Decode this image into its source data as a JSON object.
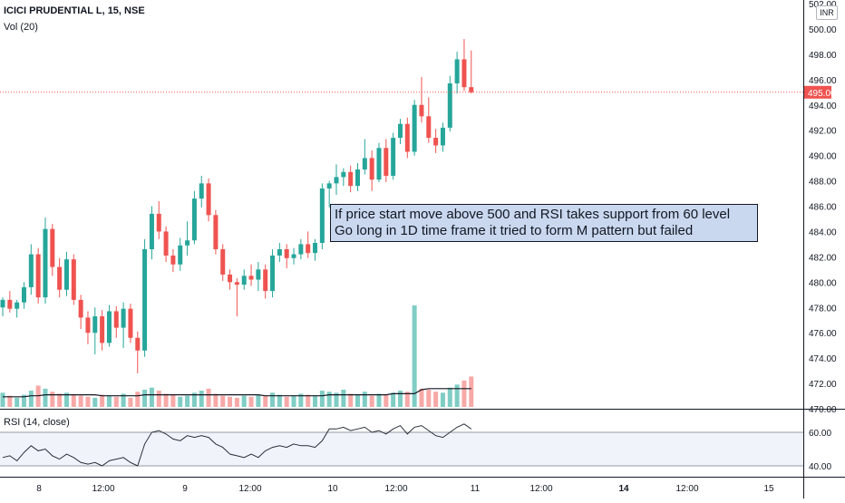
{
  "header": {
    "symbol": "ICICI PRUDENTIAL L, 15, NSE",
    "volume_label": "Vol (20)",
    "rsi_label": "RSI (14, close)",
    "currency": "INR"
  },
  "annotation": {
    "line1": "If price start move above 500 and RSI takes support from 60 level",
    "line2": "Go long in 1D time frame it tried to form M pattern but failed"
  },
  "price_axis": {
    "ticks": [
      "502.00",
      "500.00",
      "498.00",
      "496.00",
      "494.00",
      "492.00",
      "490.00",
      "488.00",
      "486.00",
      "484.00",
      "482.00",
      "480.00",
      "478.00",
      "476.00",
      "474.00",
      "472.00",
      "470.00"
    ],
    "last_price_label": "495.00"
  },
  "rsi_axis": {
    "ticks": [
      "60.00",
      "40.00"
    ]
  },
  "time_axis": {
    "labels": [
      "8",
      "12:00",
      "9",
      "12:00",
      "10",
      "12:00",
      "11",
      "12:00",
      "14",
      "12:00",
      "15"
    ]
  },
  "colors": {
    "up": "#26a69a",
    "down": "#ef5350",
    "volume_up": "#7fcdc4",
    "volume_down": "#f7a9a7",
    "rsi_band": "#f0f3fa",
    "last_price": "#ef5350"
  },
  "chart_data": [
    {
      "type": "candlestick",
      "title": "ICICI PRUDENTIAL L, 15, NSE",
      "ylim": [
        470,
        502
      ],
      "last_price": 495.0,
      "candles": [
        [
          478.0,
          478.8,
          477.3,
          478.6
        ],
        [
          478.6,
          479.3,
          477.6,
          477.9
        ],
        [
          477.9,
          478.6,
          477.2,
          478.4
        ],
        [
          478.4,
          480.0,
          477.9,
          479.6
        ],
        [
          479.6,
          483.0,
          479.0,
          482.2
        ],
        [
          482.2,
          482.7,
          478.3,
          478.8
        ],
        [
          478.8,
          485.1,
          478.3,
          484.2
        ],
        [
          484.2,
          484.6,
          480.5,
          481.2
        ],
        [
          481.2,
          481.9,
          478.8,
          479.4
        ],
        [
          479.4,
          482.4,
          478.9,
          481.8
        ],
        [
          481.8,
          482.2,
          478.2,
          478.6
        ],
        [
          478.6,
          479.0,
          476.3,
          477.2
        ],
        [
          477.2,
          477.7,
          475.1,
          476.0
        ],
        [
          476.0,
          478.0,
          474.3,
          477.3
        ],
        [
          477.3,
          477.8,
          474.6,
          475.2
        ],
        [
          475.2,
          478.2,
          474.9,
          477.7
        ],
        [
          477.7,
          478.1,
          475.6,
          476.4
        ],
        [
          476.4,
          478.4,
          474.8,
          477.9
        ],
        [
          477.9,
          478.3,
          475.2,
          475.6
        ],
        [
          475.6,
          476.1,
          472.8,
          474.6
        ],
        [
          474.6,
          483.4,
          474.1,
          482.6
        ],
        [
          482.6,
          486.0,
          481.8,
          485.4
        ],
        [
          485.4,
          486.4,
          483.4,
          484.0
        ],
        [
          484.0,
          484.4,
          481.6,
          482.1
        ],
        [
          482.1,
          482.6,
          480.8,
          481.4
        ],
        [
          481.4,
          483.5,
          480.9,
          482.9
        ],
        [
          482.9,
          484.8,
          482.1,
          483.3
        ],
        [
          483.3,
          487.2,
          483.0,
          486.6
        ],
        [
          486.6,
          488.4,
          485.9,
          487.8
        ],
        [
          487.8,
          488.2,
          484.8,
          485.3
        ],
        [
          485.3,
          485.7,
          482.2,
          482.6
        ],
        [
          482.6,
          483.0,
          480.1,
          480.6
        ],
        [
          480.6,
          481.0,
          479.4,
          480.0
        ],
        [
          480.0,
          480.3,
          477.3,
          479.8
        ],
        [
          479.8,
          481.0,
          479.4,
          480.5
        ],
        [
          480.5,
          481.4,
          479.7,
          480.2
        ],
        [
          480.2,
          481.6,
          479.3,
          481.0
        ],
        [
          481.0,
          481.4,
          478.7,
          479.3
        ],
        [
          479.3,
          482.6,
          478.8,
          482.1
        ],
        [
          482.1,
          483.1,
          481.6,
          482.6
        ],
        [
          482.6,
          483.0,
          481.1,
          481.9
        ],
        [
          481.9,
          482.7,
          481.4,
          482.2
        ],
        [
          482.2,
          483.4,
          481.8,
          483.0
        ],
        [
          483.0,
          484.0,
          481.9,
          482.3
        ],
        [
          482.3,
          483.4,
          481.7,
          483.1
        ],
        [
          483.1,
          487.8,
          482.6,
          487.4
        ],
        [
          487.4,
          488.0,
          485.9,
          487.8
        ],
        [
          487.8,
          489.3,
          486.9,
          488.3
        ],
        [
          488.3,
          489.0,
          487.6,
          488.7
        ],
        [
          488.7,
          489.2,
          487.1,
          487.6
        ],
        [
          487.6,
          489.4,
          487.2,
          488.9
        ],
        [
          488.9,
          491.3,
          488.5,
          489.8
        ],
        [
          489.8,
          490.4,
          487.2,
          488.1
        ],
        [
          488.1,
          491.0,
          487.9,
          490.6
        ],
        [
          490.6,
          491.3,
          487.9,
          488.4
        ],
        [
          488.4,
          491.8,
          488.1,
          491.4
        ],
        [
          491.4,
          492.9,
          490.9,
          492.5
        ],
        [
          492.5,
          493.0,
          489.8,
          490.3
        ],
        [
          490.3,
          494.4,
          490.0,
          494.0
        ],
        [
          494.0,
          496.2,
          492.6,
          493.1
        ],
        [
          493.1,
          494.6,
          491.0,
          491.4
        ],
        [
          491.4,
          492.1,
          490.2,
          490.8
        ],
        [
          490.8,
          492.6,
          490.3,
          492.2
        ],
        [
          492.2,
          496.3,
          491.9,
          495.7
        ],
        [
          495.7,
          498.2,
          494.9,
          497.6
        ],
        [
          497.6,
          499.2,
          495.1,
          495.4
        ],
        [
          495.4,
          498.3,
          494.9,
          495.0
        ]
      ]
    },
    {
      "type": "bar",
      "title": "Vol (20)",
      "values": [
        14,
        11,
        9,
        12,
        16,
        21,
        18,
        15,
        13,
        14,
        12,
        11,
        10,
        9,
        12,
        11,
        10,
        13,
        9,
        15,
        17,
        19,
        16,
        13,
        12,
        10,
        11,
        14,
        16,
        18,
        13,
        11,
        10,
        9,
        11,
        10,
        12,
        11,
        14,
        12,
        10,
        11,
        13,
        12,
        11,
        16,
        15,
        14,
        17,
        13,
        12,
        15,
        11,
        13,
        12,
        14,
        16,
        15,
        100,
        18,
        17,
        15,
        14,
        19,
        22,
        26,
        30
      ],
      "ma": [
        10,
        10,
        10,
        10,
        11,
        11,
        12,
        12,
        12,
        12,
        12,
        12,
        12,
        12,
        11,
        11,
        11,
        11,
        11,
        11,
        12,
        12,
        12,
        12,
        12,
        12,
        12,
        12,
        12,
        12,
        12,
        12,
        12,
        12,
        12,
        12,
        12,
        11,
        11,
        11,
        11,
        11,
        11,
        11,
        11,
        11,
        12,
        12,
        12,
        12,
        12,
        12,
        12,
        12,
        12,
        13,
        13,
        13,
        13,
        17,
        18,
        18,
        18,
        18,
        18,
        18,
        18
      ]
    },
    {
      "type": "line",
      "title": "RSI (14, close)",
      "ylim": [
        36,
        66
      ],
      "values": [
        45,
        46,
        43,
        48,
        52,
        49,
        50,
        46,
        44,
        47,
        45,
        42,
        41,
        42,
        40,
        43,
        44,
        45,
        42,
        40,
        53,
        60,
        61,
        59,
        56,
        55,
        58,
        57,
        58,
        57,
        53,
        51,
        47,
        46,
        45,
        47,
        45,
        49,
        51,
        52,
        51,
        53,
        52,
        52,
        51,
        55,
        62,
        62,
        63,
        61,
        62,
        63,
        60,
        61,
        59,
        62,
        64,
        59,
        63,
        64,
        61,
        58,
        57,
        60,
        63,
        65,
        62
      ]
    }
  ]
}
